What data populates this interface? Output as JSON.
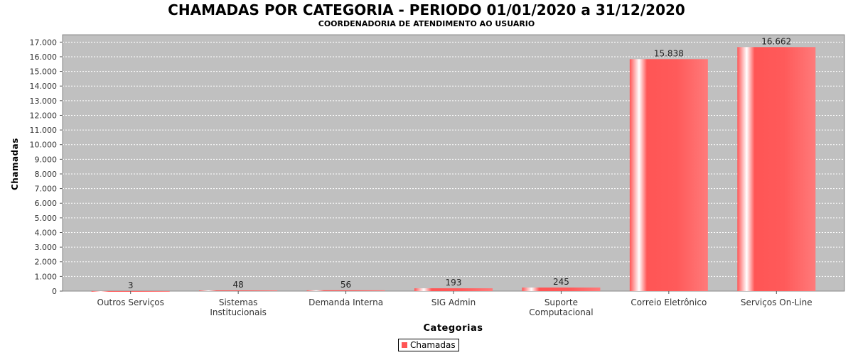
{
  "chart_data": {
    "type": "bar",
    "title": "CHAMADAS POR CATEGORIA - PERIODO 01/01/2020 a 31/12/2020",
    "subtitle": "COORDENADORIA DE ATENDIMENTO AO USUARIO",
    "xlabel": "Categorias",
    "ylabel": "Chamadas",
    "categories": [
      [
        "Outros Serviços"
      ],
      [
        "Sistemas",
        "Institucionais"
      ],
      [
        "Demanda Interna"
      ],
      [
        "SIG Admin"
      ],
      [
        "Suporte",
        "Computacional"
      ],
      [
        "Correio Eletrônico"
      ],
      [
        "Serviços On-Line"
      ]
    ],
    "series": [
      {
        "name": "Chamadas",
        "values": [
          3,
          48,
          56,
          193,
          245,
          15838,
          16662
        ],
        "color": "#ff5555"
      }
    ],
    "value_labels": [
      "3",
      "48",
      "56",
      "193",
      "245",
      "15.838",
      "16.662"
    ],
    "y_ticks": [
      "0",
      "1.000",
      "2.000",
      "3.000",
      "4.000",
      "5.000",
      "6.000",
      "7.000",
      "8.000",
      "9.000",
      "10.000",
      "11.000",
      "12.000",
      "13.000",
      "14.000",
      "15.000",
      "16.000",
      "17.000"
    ],
    "ylim": [
      0,
      17500
    ],
    "grid": true,
    "legend_position": "bottom-center",
    "plot_background": "#c0c0c0"
  },
  "legend": {
    "label": "Chamadas"
  }
}
